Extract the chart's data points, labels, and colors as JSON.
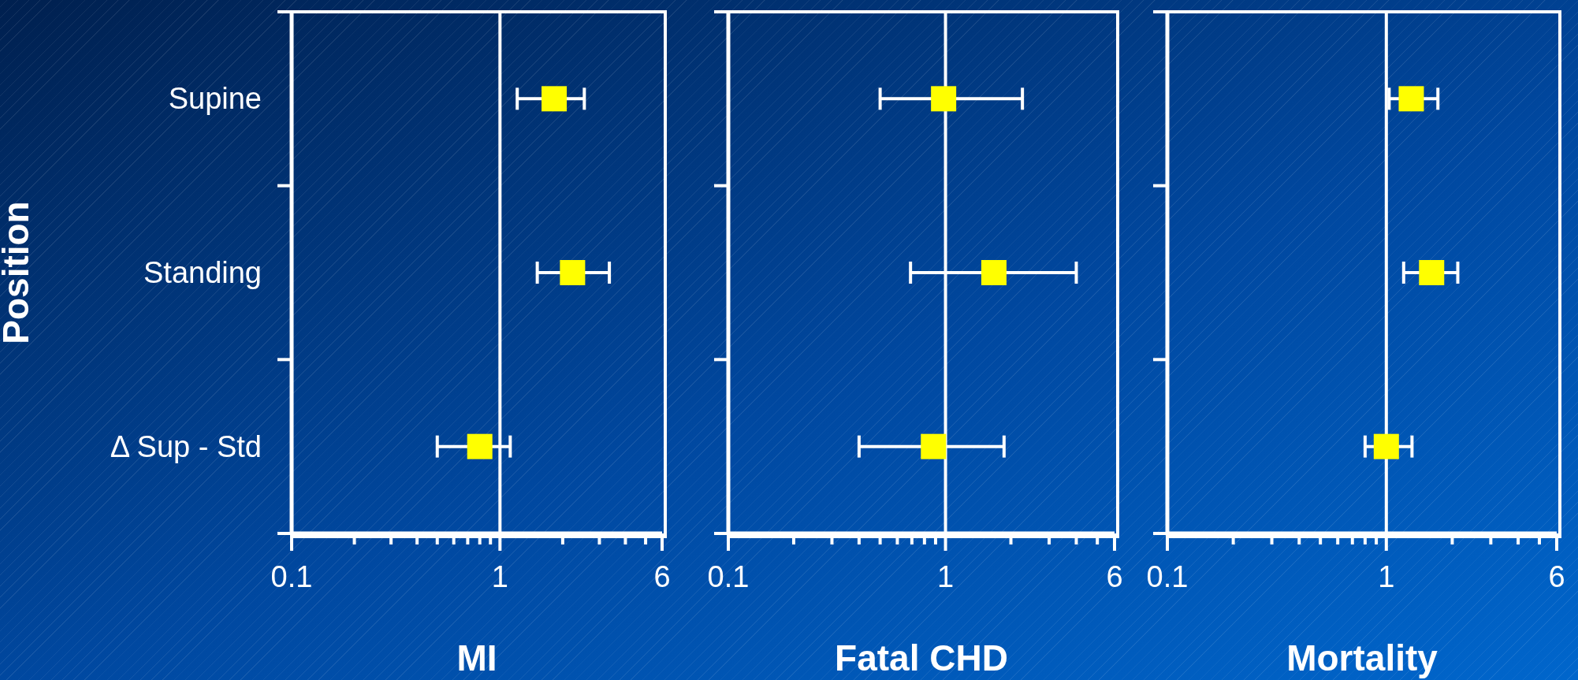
{
  "chart_data": [
    {
      "type": "scatter",
      "orientation": "horizontal",
      "categories": [
        "Supine",
        "Standing",
        "Δ Sup - Std"
      ],
      "values": [
        1.82,
        2.23,
        0.8
      ],
      "errors": [
        [
          1.21,
          2.54
        ],
        [
          1.51,
          3.35
        ],
        [
          0.5,
          1.12
        ]
      ],
      "color": "#ffff00",
      "marker": "square",
      "log": "x",
      "xlim": [
        0.1,
        6
      ],
      "xticks": [
        0.1,
        {
          "value": 0.2,
          "label": null
        },
        {
          "value": 0.3,
          "label": null
        },
        {
          "value": 0.4,
          "label": null
        },
        {
          "value": 0.5,
          "label": null
        },
        {
          "value": 0.6,
          "label": null
        },
        {
          "value": 0.7,
          "label": null
        },
        {
          "value": 0.8,
          "label": null
        },
        {
          "value": 0.9,
          "label": null
        },
        1,
        {
          "value": 2,
          "label": null
        },
        {
          "value": 3,
          "label": null
        },
        {
          "value": 4,
          "label": null
        },
        {
          "value": 5,
          "label": null
        },
        6
      ],
      "ref_lines": [
        {
          "axis": "x",
          "value": 1,
          "color": "#ffffff"
        }
      ],
      "xlabel": "MI",
      "ylabel": "Position"
    },
    {
      "type": "scatter",
      "orientation": "horizontal",
      "categories": [
        null,
        null,
        null
      ],
      "values": [
        0.98,
        1.67,
        0.88
      ],
      "errors": [
        [
          0.5,
          2.26
        ],
        [
          0.69,
          4.0
        ],
        [
          0.4,
          1.86
        ]
      ],
      "color": "#ffff00",
      "marker": "square",
      "log": "x",
      "xlim": [
        0.1,
        6
      ],
      "xticks": [
        0.1,
        {
          "value": 0.2,
          "label": null
        },
        {
          "value": 0.3,
          "label": null
        },
        {
          "value": 0.4,
          "label": null
        },
        {
          "value": 0.5,
          "label": null
        },
        {
          "value": 0.6,
          "label": null
        },
        {
          "value": 0.7,
          "label": null
        },
        {
          "value": 0.8,
          "label": null
        },
        {
          "value": 0.9,
          "label": null
        },
        1,
        {
          "value": 2,
          "label": null
        },
        {
          "value": 3,
          "label": null
        },
        {
          "value": 4,
          "label": null
        },
        {
          "value": 5,
          "label": null
        },
        6
      ],
      "ref_lines": [
        {
          "axis": "x",
          "value": 1,
          "color": "#ffffff"
        }
      ],
      "xlabel": "Fatal CHD",
      "tick_labels": "x"
    },
    {
      "type": "scatter",
      "orientation": "horizontal",
      "categories": [
        null,
        null,
        null
      ],
      "values": [
        1.3,
        1.61,
        1.0
      ],
      "errors": [
        [
          1.03,
          1.72
        ],
        [
          1.2,
          2.12
        ],
        [
          0.8,
          1.31
        ]
      ],
      "color": "#ffff00",
      "marker": "square",
      "log": "x",
      "xlim": [
        0.1,
        6
      ],
      "xticks": [
        0.1,
        {
          "value": 0.2,
          "label": null
        },
        {
          "value": 0.3,
          "label": null
        },
        {
          "value": 0.4,
          "label": null
        },
        {
          "value": 0.5,
          "label": null
        },
        {
          "value": 0.6,
          "label": null
        },
        {
          "value": 0.7,
          "label": null
        },
        {
          "value": 0.8,
          "label": null
        },
        {
          "value": 0.9,
          "label": null
        },
        1,
        {
          "value": 2,
          "label": null
        },
        {
          "value": 3,
          "label": null
        },
        {
          "value": 4,
          "label": null
        },
        {
          "value": 5,
          "label": null
        },
        6
      ],
      "ref_lines": [
        {
          "axis": "x",
          "value": 1,
          "color": "#ffffff"
        }
      ],
      "xlabel": "Mortality",
      "tick_labels": "x"
    }
  ]
}
